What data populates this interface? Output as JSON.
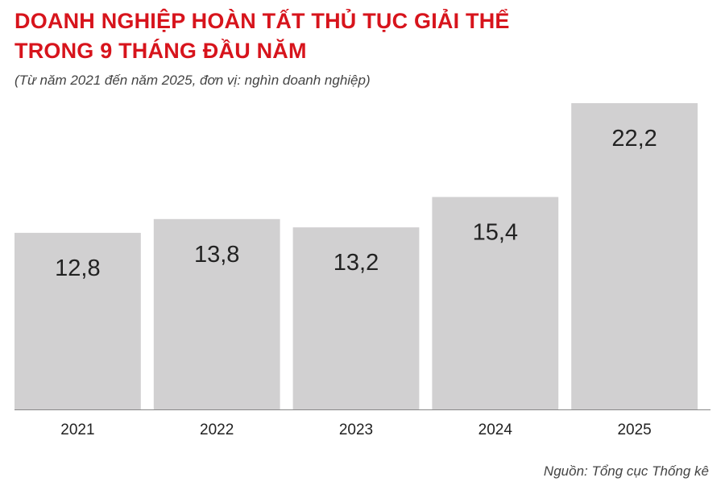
{
  "header": {
    "title_line1": "DOANH NGHIỆP HOÀN TẤT THỦ TỤC GIẢI THỂ",
    "title_line2": "TRONG 9 THÁNG ĐẦU NĂM",
    "subtitle": "(Từ năm 2021 đến năm 2025, đơn vị: nghìn doanh nghiệp)"
  },
  "footer": {
    "source": "Nguồn: Tổng cục Thống kê"
  },
  "colors": {
    "title": "#d7141c",
    "bar": "#d1d0d1",
    "text": "#222222",
    "baseline": "#888888"
  },
  "chart_data": {
    "type": "bar",
    "categories": [
      "2021",
      "2022",
      "2023",
      "2024",
      "2025"
    ],
    "values": [
      12.8,
      13.8,
      13.2,
      15.4,
      22.2
    ],
    "value_labels": [
      "12,8",
      "13,8",
      "13,2",
      "15,4",
      "22,2"
    ],
    "ylim": [
      0,
      22.2
    ],
    "grid": false,
    "legend": "none"
  }
}
